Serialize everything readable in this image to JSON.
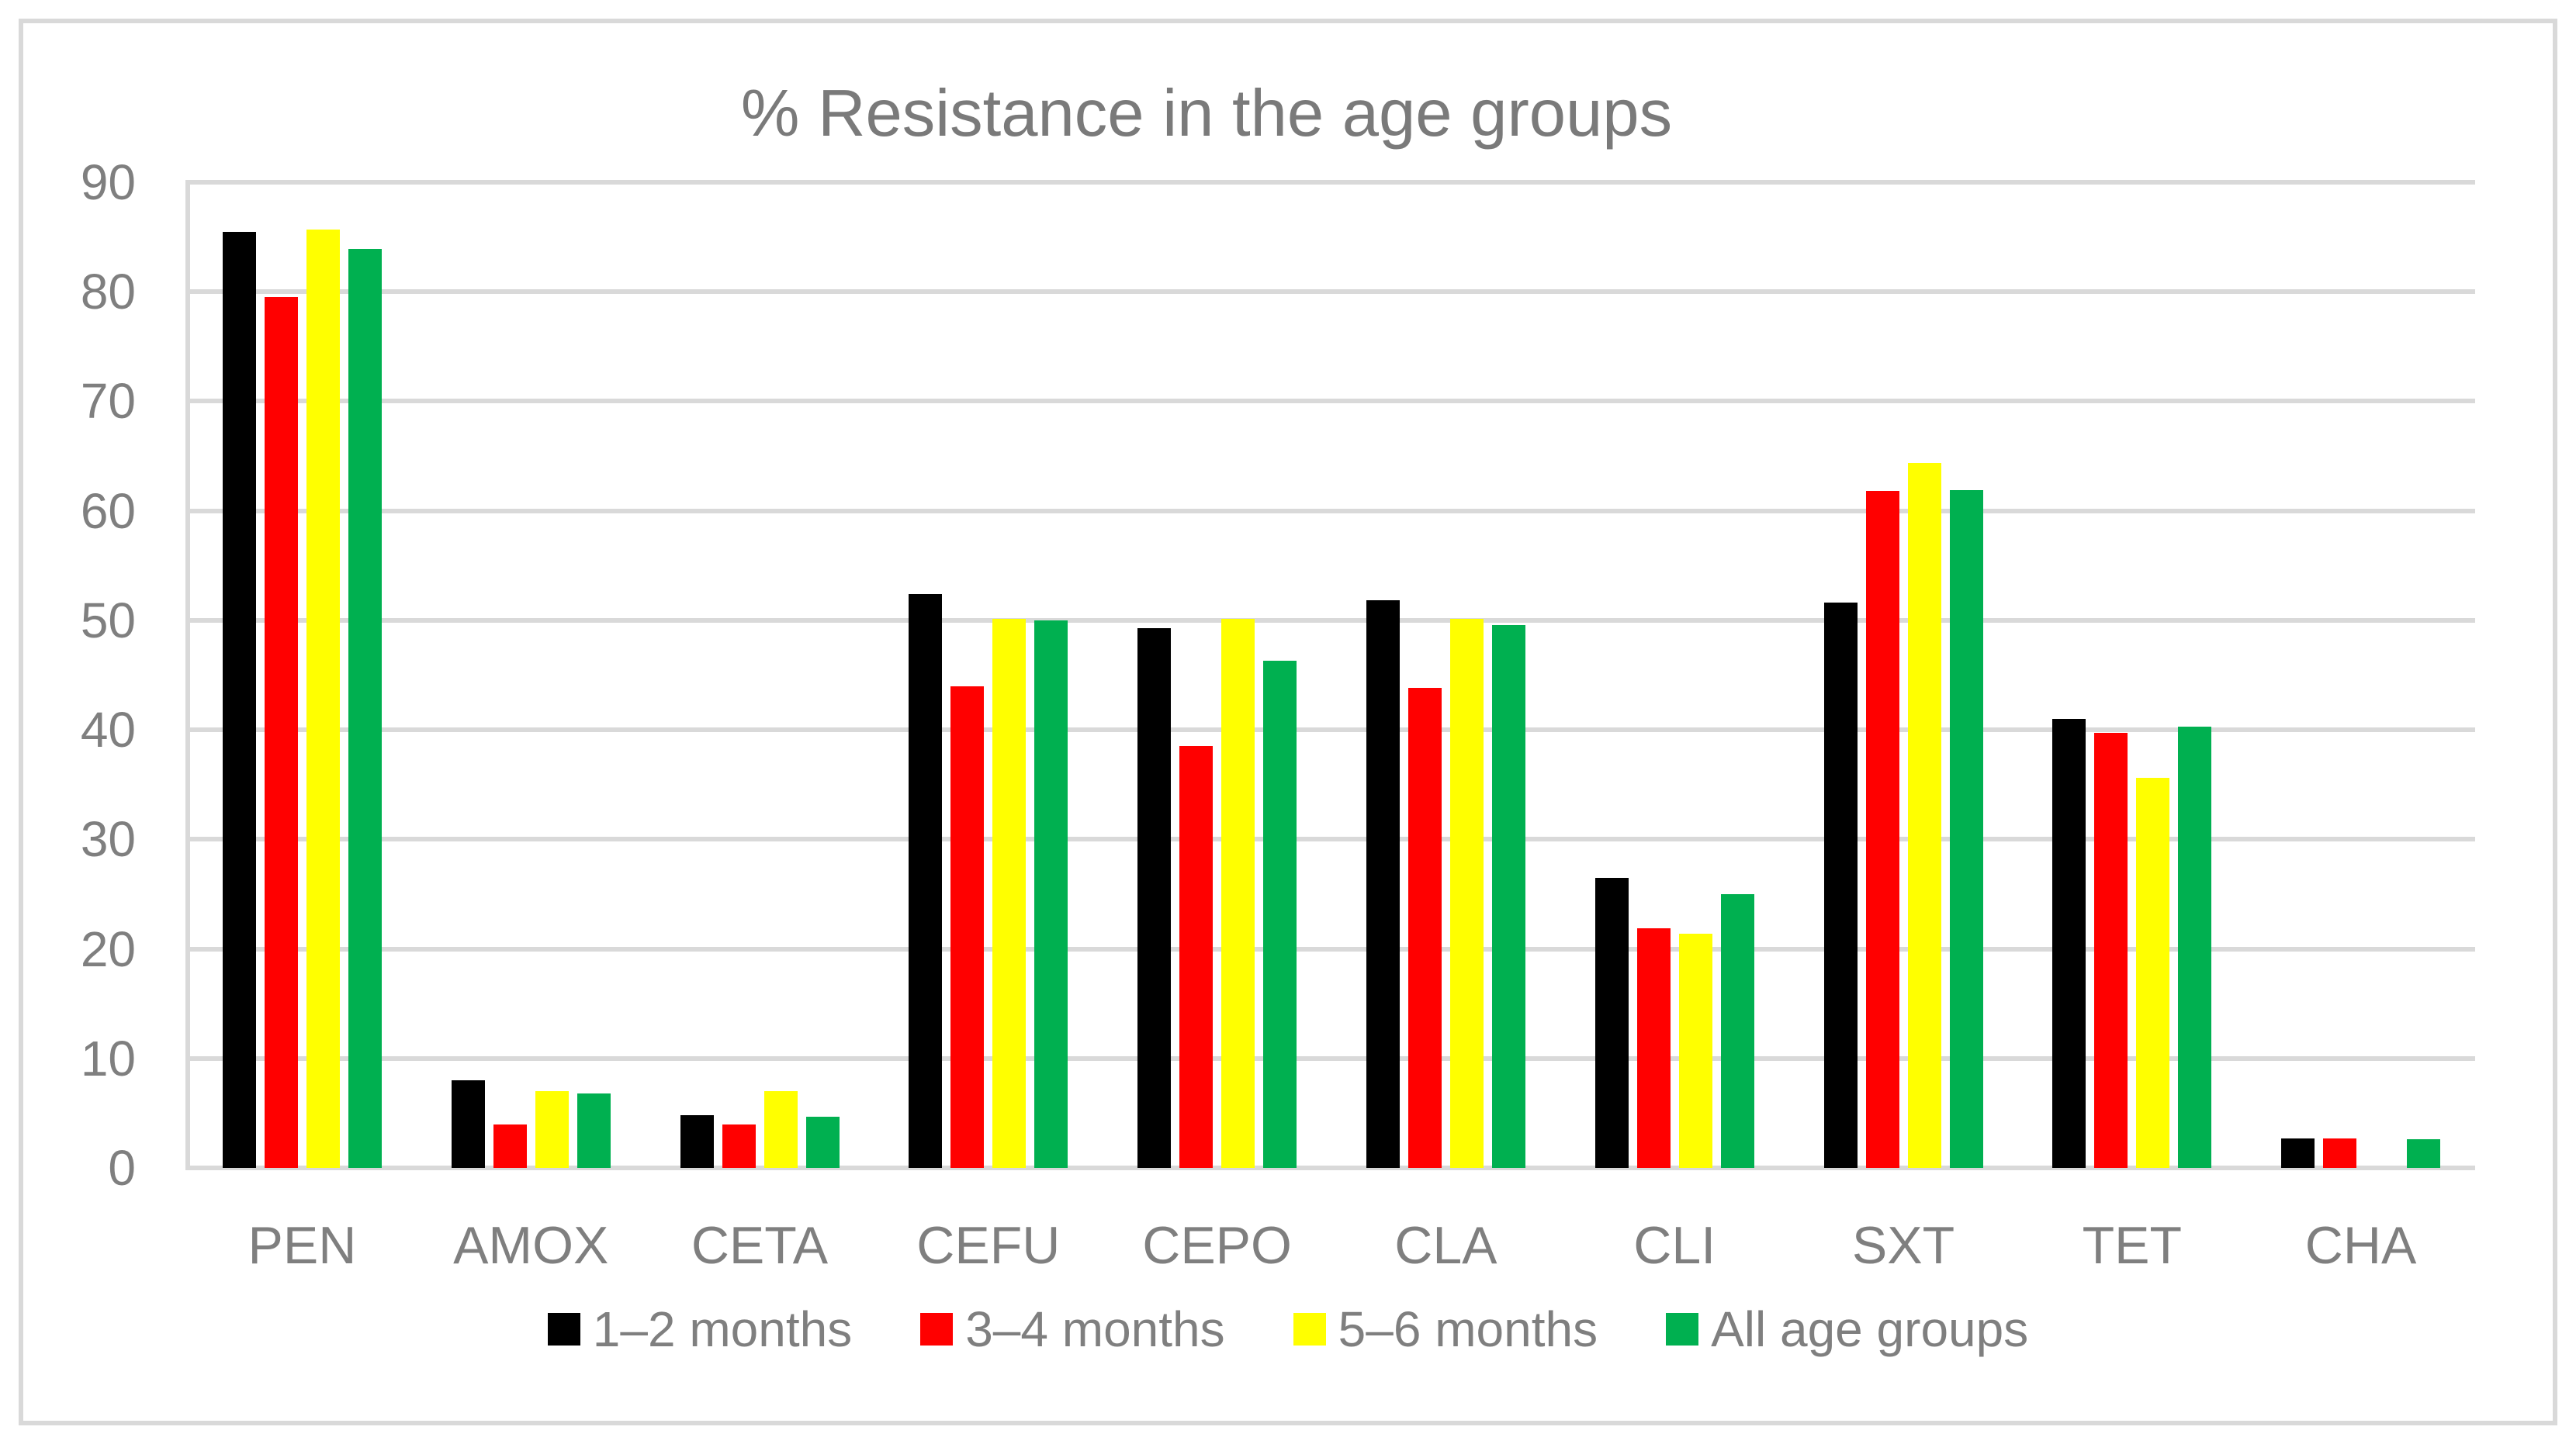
{
  "chart_data": {
    "type": "bar",
    "title": "% Resistance in the age groups",
    "xlabel": "",
    "ylabel": "",
    "ylim": [
      0,
      90
    ],
    "ytick_step": 10,
    "yticks": [
      "0",
      "10",
      "20",
      "30",
      "40",
      "50",
      "60",
      "70",
      "80",
      "90"
    ],
    "grid": true,
    "legend_position": "bottom",
    "categories": [
      "PEN",
      "AMOX",
      "CETA",
      "CEFU",
      "CEPO",
      "CLA",
      "CLI",
      "SXT",
      "TET",
      "CHA"
    ],
    "series": [
      {
        "name": "1–2 months",
        "color": "#000000",
        "values": [
          85.5,
          8.0,
          4.8,
          52.4,
          49.3,
          51.8,
          26.5,
          51.6,
          41.0,
          2.7
        ]
      },
      {
        "name": "3–4 months",
        "color": "#FF0000",
        "values": [
          79.5,
          4.0,
          4.0,
          44.0,
          38.5,
          43.8,
          21.9,
          61.8,
          39.7,
          2.7
        ]
      },
      {
        "name": "5–6 months",
        "color": "#FFFF00",
        "values": [
          85.7,
          7.0,
          7.0,
          50.1,
          50.1,
          50.1,
          21.4,
          64.4,
          35.6,
          0
        ]
      },
      {
        "name": "All age groups",
        "color": "#00B050",
        "values": [
          83.9,
          6.8,
          4.7,
          50.0,
          46.3,
          49.6,
          25.0,
          61.9,
          40.3,
          2.6
        ]
      }
    ]
  },
  "styles": {
    "background": "#FFFFFF",
    "frame_border": "#D9D9D9",
    "gridline": "#D9D9D9",
    "axis_text": "#7F7F7F",
    "title_color": "#7A7A7A"
  }
}
